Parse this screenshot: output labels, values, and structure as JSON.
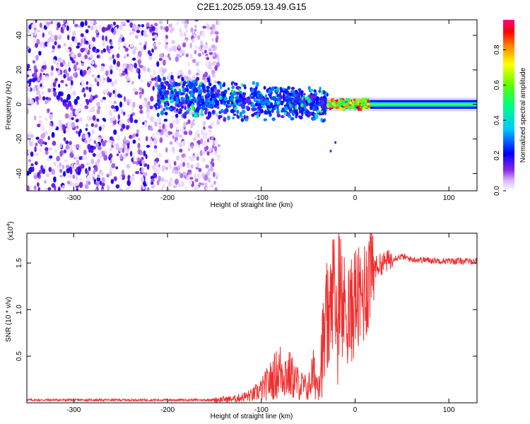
{
  "figure_title": "C2E1.2025.059.13.49.G15",
  "chart_data": [
    {
      "type": "heatmap",
      "title": "",
      "xlabel": "Height of straight line (km)",
      "ylabel": "Frequency (Hz)",
      "xlim": [
        -350,
        130
      ],
      "ylim": [
        -50,
        49
      ],
      "x_ticks": [
        -300,
        -200,
        -100,
        0,
        100
      ],
      "y_ticks": [
        -40,
        -20,
        0,
        20,
        40
      ],
      "colorbar": {
        "label": "Normalized spectral amplitude",
        "range": [
          0.0,
          0.97
        ],
        "ticks": [
          0.0,
          0.2,
          0.4,
          0.6,
          0.8
        ],
        "colormap": [
          "#ffffff",
          "#a050ff",
          "#0000ff",
          "#00c8ff",
          "#00ff80",
          "#80ff00",
          "#ffff00",
          "#ff8000",
          "#ff0000",
          "#ff0080"
        ]
      },
      "regions": [
        {
          "name": "scattered noise",
          "x_range": [
            -350,
            -145
          ],
          "freq_range": [
            -50,
            49
          ],
          "amplitude": 0.15
        },
        {
          "name": "diffuse band",
          "x_range": [
            -210,
            -30
          ],
          "freq_range": [
            -15,
            15
          ],
          "amplitude": 0.25
        },
        {
          "name": "narrow signal",
          "x_range": [
            -30,
            130
          ],
          "freq_center": 0,
          "amplitude": 0.55
        }
      ]
    },
    {
      "type": "line",
      "title": "",
      "xlabel": "Height of straight line (km)",
      "ylabel": "SNR (10 * v/v)",
      "y_multiplier": "(x10",
      "y_multiplier_exp": "4",
      "y_multiplier_close": ")",
      "xlim": [
        -350,
        130
      ],
      "ylim": [
        0,
        1.82
      ],
      "x_ticks": [
        -300,
        -200,
        -100,
        0,
        100
      ],
      "y_ticks": [
        0.5,
        1.0,
        1.5
      ],
      "y_tick_labels": [
        "0.5",
        "1.0",
        "1.5"
      ],
      "color": "#f03030",
      "series": [
        {
          "name": "SNR",
          "x": [
            -350,
            -300,
            -250,
            -200,
            -160,
            -130,
            -110,
            -100,
            -90,
            -80,
            -70,
            -60,
            -50,
            -45,
            -40,
            -35,
            -30,
            -25,
            -22,
            -20,
            -15,
            -10,
            -5,
            0,
            5,
            10,
            15,
            20,
            30,
            40,
            50,
            60,
            80,
            100,
            130
          ],
          "y": [
            0.03,
            0.03,
            0.03,
            0.03,
            0.03,
            0.04,
            0.08,
            0.14,
            0.24,
            0.35,
            0.3,
            0.2,
            0.15,
            0.32,
            0.2,
            0.55,
            0.8,
            1.05,
            1.5,
            0.7,
            0.95,
            1.05,
            0.9,
            1.15,
            1.05,
            1.22,
            1.35,
            1.45,
            1.5,
            1.55,
            1.57,
            1.54,
            1.53,
            1.52,
            1.52
          ]
        }
      ]
    }
  ]
}
